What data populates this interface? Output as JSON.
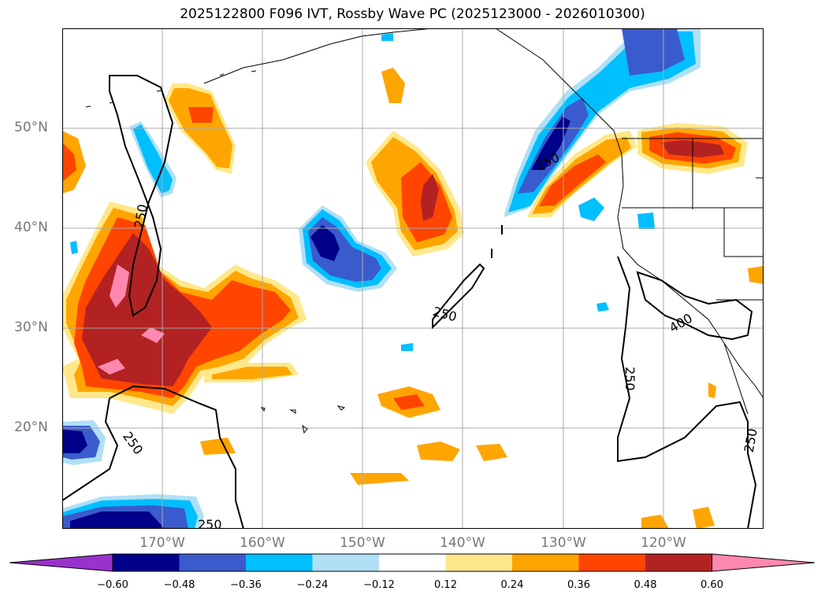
{
  "title": "2025122800 F096 IVT, Rossby Wave PC (2025123000 - 2026010300)",
  "lat_labels": [
    "50°N",
    "40°N",
    "30°N",
    "20°N"
  ],
  "lon_labels": [
    "170°W",
    "160°W",
    "150°W",
    "140°W",
    "130°W",
    "120°W"
  ],
  "contour_labels": [
    "250",
    "250",
    "250",
    "250",
    "250",
    "250",
    "400",
    "250"
  ],
  "colorbar": {
    "ticks": [
      "−0.60",
      "−0.48",
      "−0.36",
      "−0.24",
      "−0.12",
      "0.12",
      "0.24",
      "0.36",
      "0.48",
      "0.60"
    ],
    "colors": [
      "#9932cc",
      "#00008b",
      "#3a5bcd",
      "#00bfff",
      "#b0e0f5",
      "#ffffff",
      "#ffe88a",
      "#ffa500",
      "#ff4500",
      "#b22222",
      "#ff88b0"
    ]
  },
  "colors": {
    "grid": "#aaaaaa",
    "coast": "#000000",
    "contour": "#000000"
  }
}
